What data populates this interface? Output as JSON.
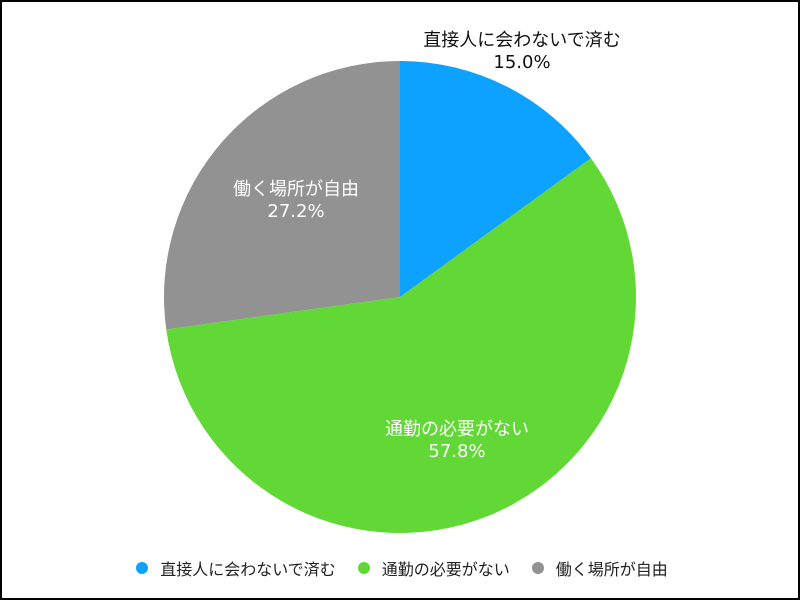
{
  "chart_data": {
    "type": "pie",
    "categories": [
      "直接人に会わないで済む",
      "通勤の必要がない",
      "働く場所が自由"
    ],
    "values": [
      15.0,
      57.8,
      27.2
    ],
    "value_labels": [
      "15.0%",
      "57.8%",
      "27.2%"
    ],
    "colors": [
      "#0da2ff",
      "#61d836",
      "#929292"
    ],
    "start": "12 o'clock, clockwise",
    "legend_position": "bottom"
  }
}
